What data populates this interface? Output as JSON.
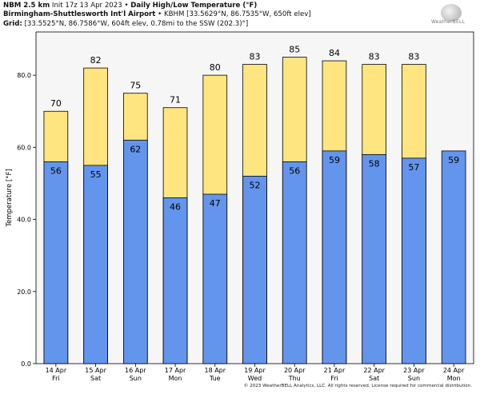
{
  "header": {
    "model": "NBM 2.5 km",
    "init": "Init 17z 13 Apr 2023",
    "product": "Daily High/Low Temperature (°F)",
    "station_name": "Birmingham-Shuttlesworth Int'l Airport",
    "station_info": "KBHM [33.5629°N, 86.7535°W, 650ft elev]",
    "grid_label": "Grid:",
    "grid_info": "[33.5525°N, 86.7586°W, 604ft elev, 0.78mi to the SSW (202.3)°]"
  },
  "logo": {
    "text": "WeatherBELL"
  },
  "footer": "© 2023 WeatherBELL Analytics, LLC. All rights reserved. License required for commercial distribution.",
  "colors": {
    "high": "#ffe57f",
    "low": "#6495ed",
    "plot_bg": "#f6f6f6",
    "edge": "#000000"
  },
  "chart_data": {
    "type": "bar",
    "ylabel": "Temperature [°F]",
    "ylim": [
      0,
      92
    ],
    "yticks": [
      0,
      20,
      40,
      60,
      80
    ],
    "ytick_labels": [
      "0.0",
      "20.0",
      "40.0",
      "60.0",
      "80.0"
    ],
    "categories": [
      {
        "date": "14 Apr",
        "day": "Fri"
      },
      {
        "date": "15 Apr",
        "day": "Sat"
      },
      {
        "date": "16 Apr",
        "day": "Sun"
      },
      {
        "date": "17 Apr",
        "day": "Mon"
      },
      {
        "date": "18 Apr",
        "day": "Tue"
      },
      {
        "date": "19 Apr",
        "day": "Wed"
      },
      {
        "date": "20 Apr",
        "day": "Thu"
      },
      {
        "date": "21 Apr",
        "day": "Fri"
      },
      {
        "date": "22 Apr",
        "day": "Sat"
      },
      {
        "date": "23 Apr",
        "day": "Sun"
      },
      {
        "date": "24 Apr",
        "day": "Mon"
      }
    ],
    "series": [
      {
        "key": "high",
        "values": [
          70,
          82,
          75,
          71,
          80,
          83,
          85,
          84,
          83,
          83,
          null
        ]
      },
      {
        "key": "low",
        "values": [
          56,
          55,
          62,
          46,
          47,
          52,
          56,
          59,
          58,
          57,
          59
        ]
      }
    ],
    "grid": false
  }
}
